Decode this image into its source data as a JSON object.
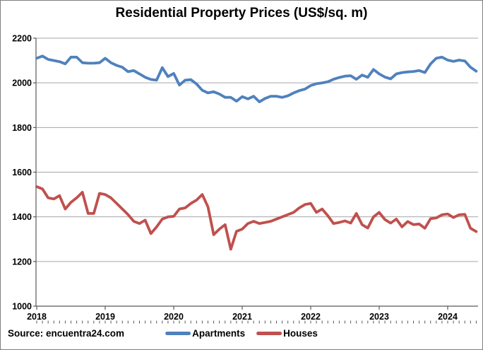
{
  "title": "Residential Property Prices (US$/sq. m)",
  "source": "Source: encuentra24.com",
  "legend": {
    "apartments_label": "Apartments",
    "houses_label": "Houses"
  },
  "colors": {
    "apartments_line": "#4F81BD",
    "houses_line": "#C0504D",
    "gridline": "#A6A6A6",
    "axis": "#595959",
    "text": "#000000",
    "background": "#FFFFFF",
    "canvas_border": "#7F7F7F"
  },
  "chart_data": {
    "type": "line",
    "title": "Residential Property Prices (US$/sq. m)",
    "xlabel": "",
    "ylabel": "",
    "ylim": [
      1000,
      2200
    ],
    "ytick_interval": 200,
    "y_tick_labels": [
      "2200",
      "2000",
      "1800",
      "1600",
      "1400",
      "1200",
      "1000"
    ],
    "x_tick_labels": [
      "2018",
      "2019",
      "2020",
      "2021",
      "2022",
      "2023",
      "2024"
    ],
    "grid": "horizontal",
    "legend_position": "bottom-center",
    "x": [
      "2018-01",
      "2018-02",
      "2018-03",
      "2018-04",
      "2018-05",
      "2018-06",
      "2018-07",
      "2018-08",
      "2018-09",
      "2018-10",
      "2018-11",
      "2018-12",
      "2019-01",
      "2019-02",
      "2019-03",
      "2019-04",
      "2019-05",
      "2019-06",
      "2019-07",
      "2019-08",
      "2019-09",
      "2019-10",
      "2019-11",
      "2019-12",
      "2020-01",
      "2020-02",
      "2020-03",
      "2020-04",
      "2020-05",
      "2020-06",
      "2020-07",
      "2020-08",
      "2020-09",
      "2020-10",
      "2020-11",
      "2020-12",
      "2021-01",
      "2021-02",
      "2021-03",
      "2021-04",
      "2021-05",
      "2021-06",
      "2021-07",
      "2021-08",
      "2021-09",
      "2021-10",
      "2021-11",
      "2021-12",
      "2022-01",
      "2022-02",
      "2022-03",
      "2022-04",
      "2022-05",
      "2022-06",
      "2022-07",
      "2022-08",
      "2022-09",
      "2022-10",
      "2022-11",
      "2022-12",
      "2023-01",
      "2023-02",
      "2023-03",
      "2023-04",
      "2023-05",
      "2023-06",
      "2023-07",
      "2023-08",
      "2023-09",
      "2023-10",
      "2023-11",
      "2023-12",
      "2024-01",
      "2024-02",
      "2024-03",
      "2024-04",
      "2024-05",
      "2024-06"
    ],
    "series": [
      {
        "name": "Apartments",
        "color": "#4F81BD",
        "values": [
          2110,
          2120,
          2105,
          2100,
          2095,
          2085,
          2115,
          2115,
          2090,
          2088,
          2088,
          2090,
          2110,
          2090,
          2078,
          2070,
          2050,
          2055,
          2040,
          2025,
          2015,
          2012,
          2068,
          2028,
          2042,
          1990,
          2012,
          2014,
          1995,
          1967,
          1955,
          1960,
          1950,
          1935,
          1935,
          1918,
          1938,
          1928,
          1940,
          1915,
          1930,
          1940,
          1940,
          1935,
          1942,
          1955,
          1965,
          1972,
          1988,
          1996,
          2000,
          2005,
          2016,
          2024,
          2030,
          2032,
          2016,
          2035,
          2025,
          2060,
          2040,
          2026,
          2018,
          2040,
          2046,
          2049,
          2051,
          2055,
          2046,
          2085,
          2110,
          2115,
          2102,
          2096,
          2102,
          2098,
          2070,
          2052
        ]
      },
      {
        "name": "Houses",
        "color": "#C0504D",
        "values": [
          1535,
          1525,
          1485,
          1480,
          1495,
          1435,
          1465,
          1485,
          1510,
          1415,
          1415,
          1505,
          1500,
          1485,
          1460,
          1435,
          1410,
          1380,
          1370,
          1385,
          1325,
          1355,
          1390,
          1400,
          1402,
          1435,
          1440,
          1460,
          1475,
          1500,
          1445,
          1320,
          1345,
          1365,
          1255,
          1335,
          1345,
          1370,
          1380,
          1370,
          1375,
          1380,
          1390,
          1400,
          1410,
          1420,
          1440,
          1455,
          1460,
          1420,
          1435,
          1405,
          1370,
          1375,
          1382,
          1372,
          1415,
          1365,
          1350,
          1400,
          1420,
          1388,
          1372,
          1390,
          1355,
          1379,
          1365,
          1368,
          1349,
          1392,
          1395,
          1409,
          1413,
          1397,
          1409,
          1411,
          1349,
          1334
        ]
      }
    ]
  }
}
